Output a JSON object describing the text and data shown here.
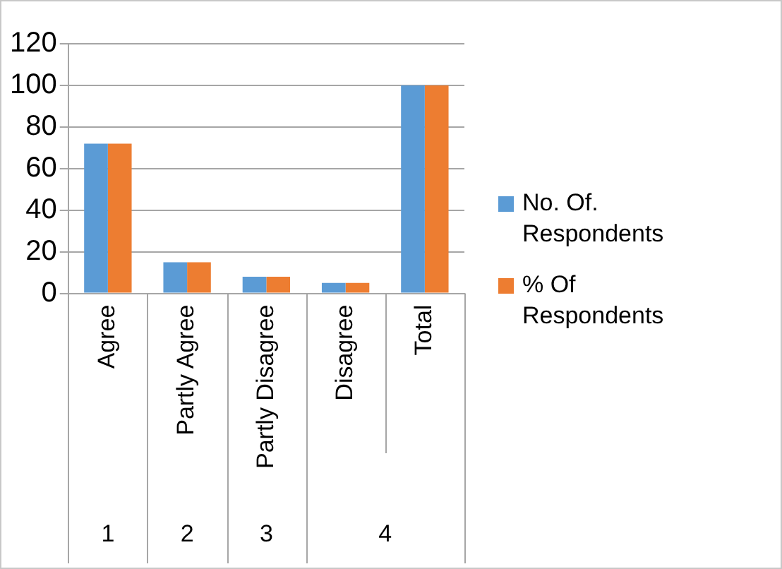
{
  "chart_data": {
    "type": "bar",
    "categories": [
      "Agree",
      "Partly Agree",
      "Partly Disagree",
      "Disagree",
      "Total"
    ],
    "series": [
      {
        "name": "No. Of. Respondents",
        "color": "#5b9bd5",
        "values": [
          72,
          15,
          8,
          5,
          100
        ]
      },
      {
        "name": "% Of Respondents",
        "color": "#ed7d31",
        "values": [
          72,
          15,
          8,
          5,
          100
        ]
      }
    ],
    "ylim": [
      0,
      120
    ],
    "yticks": [
      0,
      20,
      40,
      60,
      80,
      100,
      120
    ],
    "grid": "y",
    "legend": "right",
    "annotations": [
      "1",
      "2",
      "3",
      "4"
    ]
  }
}
